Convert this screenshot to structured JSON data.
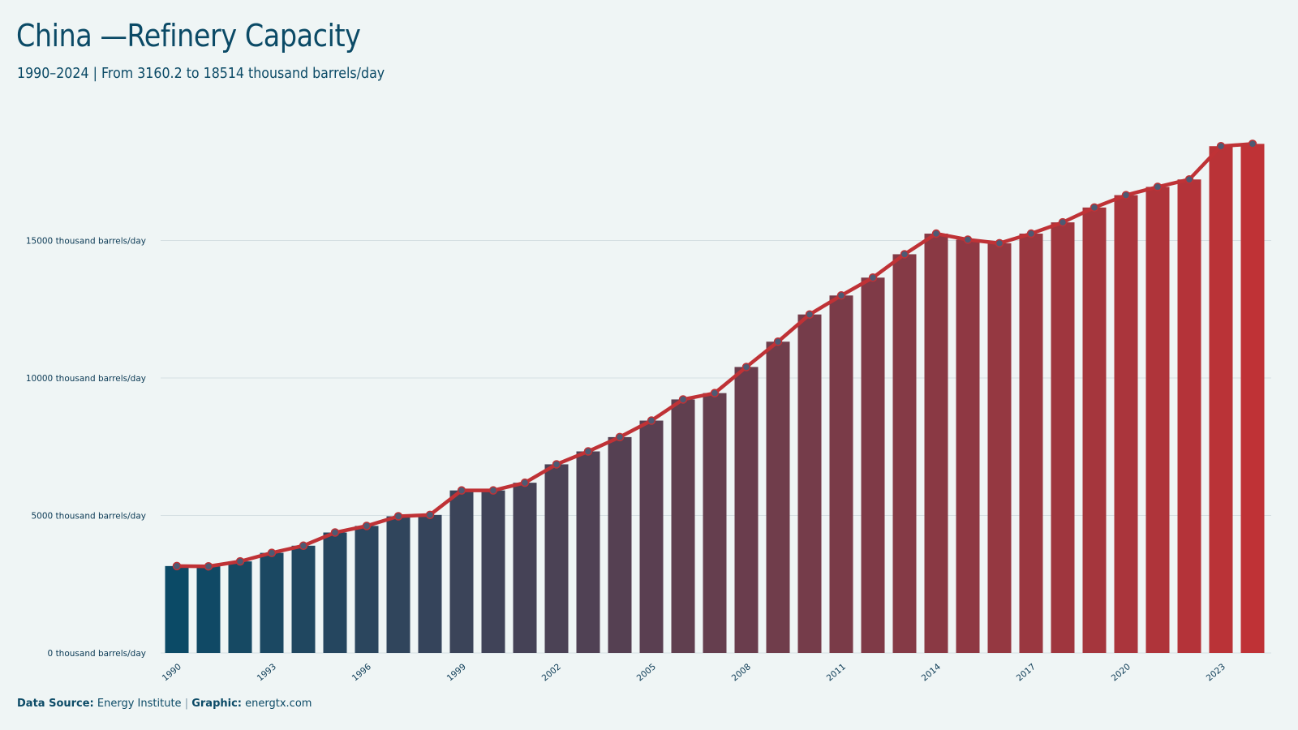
{
  "header": {
    "title": "China —Refinery Capacity",
    "subtitle": "1990–2024 | From 3160.2 to 18514 thousand barrels/day"
  },
  "footer": {
    "source_label": "Data Source:",
    "source_value": "Energy Institute",
    "separator": "|",
    "graphic_label": "Graphic:",
    "graphic_value": "energtx.com"
  },
  "colors": {
    "background": "#eff5f5",
    "bar_start": "#0b4a66",
    "bar_end": "#bf3236",
    "line": "#bf3236",
    "marker_fill": "#4d5a73",
    "gridline": "#d5dfe2",
    "text": "#0b4a66"
  },
  "chart_data": {
    "type": "bar",
    "title": "China —Refinery Capacity",
    "subtitle": "1990–2024 | From 3160.2 to 18514 thousand barrels/day",
    "xlabel": "",
    "ylabel": "",
    "unit": "thousand barrels/day",
    "ylim": [
      0,
      19000
    ],
    "y_ticks": [
      0,
      5000,
      10000,
      15000
    ],
    "y_tick_labels": [
      "0 thousand barrels/day",
      "5000 thousand barrels/day",
      "10000 thousand barrels/day",
      "15000 thousand barrels/day"
    ],
    "x_tick_labels": [
      "1990",
      "1993",
      "1996",
      "1999",
      "2002",
      "2005",
      "2008",
      "2011",
      "2014",
      "2017",
      "2020",
      "2023"
    ],
    "grid": true,
    "legend": "none",
    "overlay": "line with markers",
    "categories": [
      "1990",
      "1991",
      "1992",
      "1993",
      "1994",
      "1995",
      "1996",
      "1997",
      "1998",
      "1999",
      "2000",
      "2001",
      "2002",
      "2003",
      "2004",
      "2005",
      "2006",
      "2007",
      "2008",
      "2009",
      "2010",
      "2011",
      "2012",
      "2013",
      "2014",
      "2015",
      "2016",
      "2017",
      "2018",
      "2019",
      "2020",
      "2021",
      "2022",
      "2023",
      "2024"
    ],
    "values": [
      3160.2,
      3150,
      3330,
      3640,
      3900,
      4380,
      4620,
      4970,
      5020,
      5910,
      5910,
      6190,
      6860,
      7330,
      7850,
      8450,
      9220,
      9450,
      10400,
      11320,
      12310,
      13000,
      13650,
      14500,
      15250,
      15030,
      14900,
      15250,
      15660,
      16200,
      16650,
      16950,
      17220,
      18430,
      18514
    ]
  }
}
